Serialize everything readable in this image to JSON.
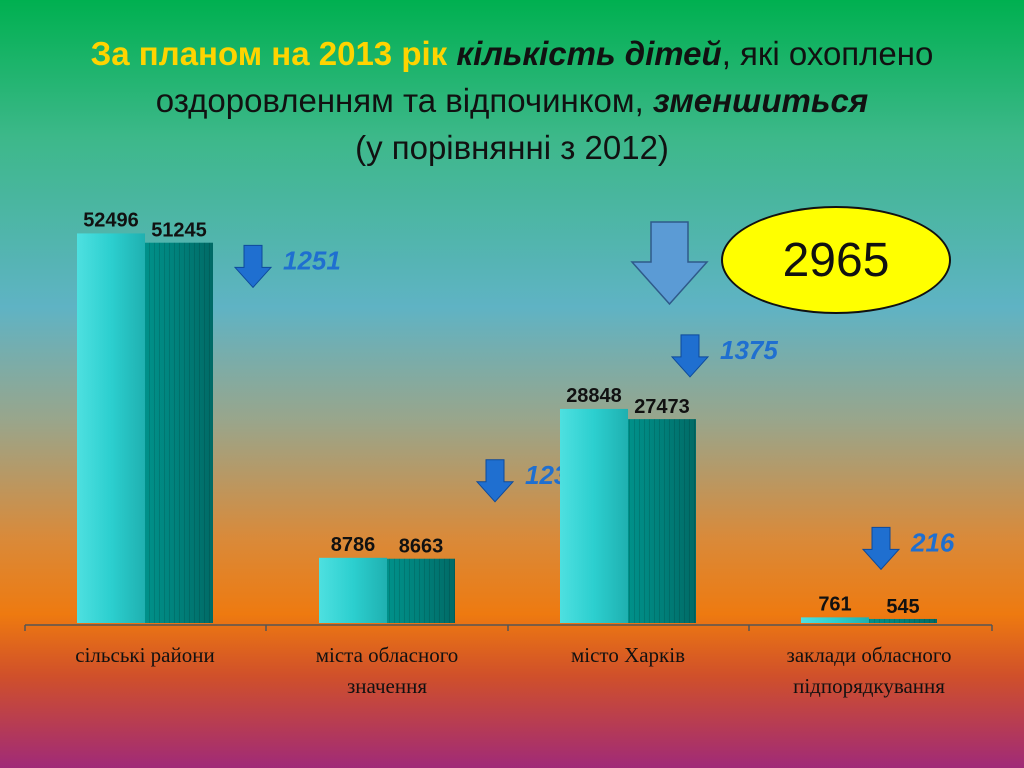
{
  "title": {
    "part1": "За планом на 2013 рік ",
    "part2": "кількість дітей",
    "part3": ", які охоплено оздоровленням та відпочинком, ",
    "part4": "зменшиться",
    "part5": "(у порівнянні з 2012)"
  },
  "total_decrease": "2965",
  "colors": {
    "bar2012": "#2ccfcf",
    "bar2013": "#00807a",
    "arrow": "#1f6fd0",
    "delta_text": "#1f6fd0",
    "big_arrow": "#5b9bd5"
  },
  "chart_data": {
    "type": "bar",
    "categories": [
      "сільські райони",
      "міста обласного значення",
      "місто Харків",
      "заклади обласного підпорядкування"
    ],
    "series": [
      {
        "values": [
          52496,
          8786,
          28848,
          761
        ]
      },
      {
        "values": [
          51245,
          8663,
          27473,
          545
        ]
      }
    ],
    "deltas": [
      "1251",
      "123",
      "1375",
      "216"
    ],
    "ylim": [
      0,
      57000
    ],
    "grid": false,
    "legend": "none"
  }
}
